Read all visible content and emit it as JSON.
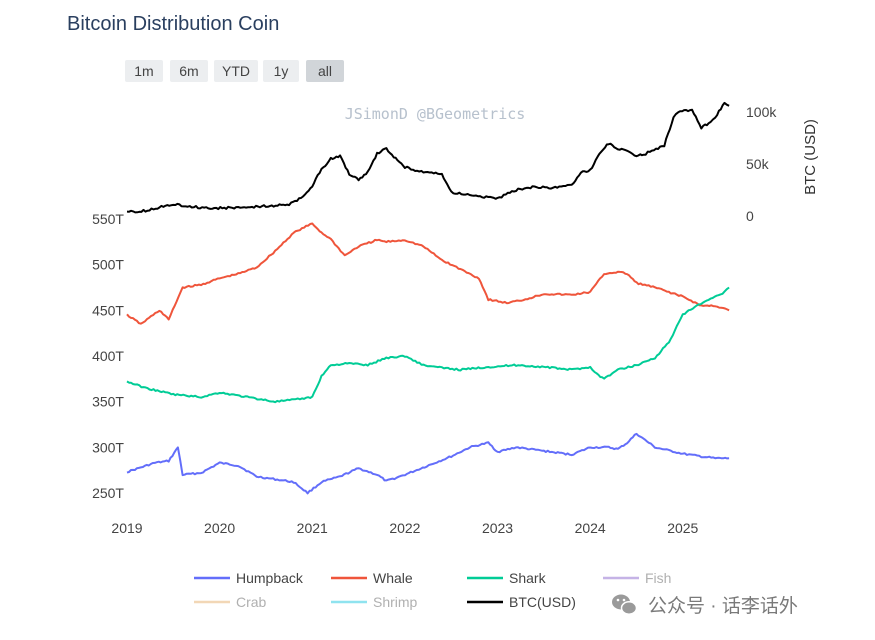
{
  "chart_data": {
    "type": "line",
    "title": "Bitcoin Distribution Coin",
    "watermark": "JSimonD @BGeometrics",
    "range_buttons": [
      {
        "label": "1m",
        "active": false
      },
      {
        "label": "6m",
        "active": false
      },
      {
        "label": "YTD",
        "active": false
      },
      {
        "label": "1y",
        "active": false
      },
      {
        "label": "all",
        "active": true
      }
    ],
    "x_range": [
      2019.0,
      2025.65
    ],
    "x_ticks": [
      2019,
      2020,
      2021,
      2022,
      2023,
      2024,
      2025
    ],
    "y_left": {
      "range": [
        250,
        550
      ],
      "ticks": [
        250,
        300,
        350,
        400,
        450,
        500,
        550
      ],
      "suffix": "T"
    },
    "y_right": {
      "title": "BTC (USD)",
      "range": [
        0,
        110000
      ],
      "ticks": [
        0,
        50000,
        100000
      ],
      "tick_labels": [
        "0",
        "50k",
        "100k"
      ]
    },
    "series": [
      {
        "name": "Humpback",
        "axis": "left",
        "color": "#636efa",
        "x": [
          2019.0,
          2019.3,
          2019.45,
          2019.55,
          2019.6,
          2019.8,
          2020.0,
          2020.2,
          2020.4,
          2020.6,
          2020.8,
          2020.95,
          2021.1,
          2021.3,
          2021.5,
          2021.7,
          2021.8,
          2022.0,
          2022.3,
          2022.5,
          2022.7,
          2022.9,
          2023.0,
          2023.2,
          2023.5,
          2023.8,
          2024.0,
          2024.2,
          2024.3,
          2024.4,
          2024.5,
          2024.7,
          2025.0,
          2025.2,
          2025.35,
          2025.5
        ],
        "y": [
          273,
          283,
          285,
          300,
          270,
          272,
          283,
          280,
          268,
          265,
          262,
          250,
          262,
          268,
          277,
          270,
          263,
          270,
          282,
          290,
          300,
          305,
          295,
          300,
          296,
          292,
          300,
          300,
          298,
          305,
          315,
          300,
          293,
          290,
          288,
          288
        ]
      },
      {
        "name": "Whale",
        "axis": "left",
        "color": "#ef553b",
        "x": [
          2019.0,
          2019.15,
          2019.35,
          2019.45,
          2019.6,
          2019.8,
          2020.0,
          2020.2,
          2020.4,
          2020.6,
          2020.8,
          2021.0,
          2021.1,
          2021.2,
          2021.35,
          2021.5,
          2021.7,
          2021.8,
          2022.0,
          2022.2,
          2022.4,
          2022.6,
          2022.8,
          2022.9,
          2023.1,
          2023.3,
          2023.5,
          2023.8,
          2024.0,
          2024.15,
          2024.3,
          2024.4,
          2024.5,
          2024.7,
          2025.0,
          2025.2,
          2025.35,
          2025.5
        ],
        "y": [
          445,
          435,
          450,
          440,
          475,
          478,
          485,
          490,
          497,
          515,
          535,
          545,
          535,
          528,
          510,
          520,
          527,
          525,
          527,
          520,
          505,
          495,
          485,
          462,
          458,
          462,
          468,
          467,
          470,
          490,
          492,
          490,
          480,
          475,
          465,
          455,
          455,
          450
        ]
      },
      {
        "name": "Shark",
        "axis": "left",
        "color": "#00cc96",
        "x": [
          2019.0,
          2019.2,
          2019.5,
          2019.8,
          2020.0,
          2020.3,
          2020.6,
          2020.8,
          2021.0,
          2021.1,
          2021.2,
          2021.4,
          2021.6,
          2021.8,
          2022.0,
          2022.2,
          2022.4,
          2022.6,
          2022.9,
          2023.2,
          2023.5,
          2023.8,
          2024.0,
          2024.05,
          2024.15,
          2024.3,
          2024.5,
          2024.7,
          2024.85,
          2025.0,
          2025.15,
          2025.3,
          2025.45,
          2025.5
        ],
        "y": [
          372,
          365,
          358,
          355,
          360,
          355,
          350,
          352,
          355,
          378,
          390,
          392,
          390,
          398,
          400,
          390,
          387,
          385,
          388,
          390,
          388,
          385,
          388,
          382,
          375,
          385,
          390,
          398,
          415,
          445,
          455,
          462,
          470,
          475
        ]
      },
      {
        "name": "Fish",
        "axis": "left",
        "color": "#c5b3e6",
        "legend_only": true,
        "x": [],
        "y": []
      },
      {
        "name": "Crab",
        "axis": "left",
        "color": "#f2d7b6",
        "legend_only": true,
        "x": [],
        "y": []
      },
      {
        "name": "Shrimp",
        "axis": "left",
        "color": "#8fe3ef",
        "legend_only": true,
        "x": [],
        "y": []
      },
      {
        "name": "BTC(USD)",
        "axis": "right",
        "color": "#000000",
        "x": [
          2019.0,
          2019.2,
          2019.5,
          2019.7,
          2019.9,
          2020.2,
          2020.5,
          2020.75,
          2020.9,
          2021.0,
          2021.1,
          2021.2,
          2021.3,
          2021.4,
          2021.5,
          2021.6,
          2021.7,
          2021.8,
          2021.9,
          2022.0,
          2022.2,
          2022.4,
          2022.5,
          2022.7,
          2022.9,
          2023.0,
          2023.2,
          2023.4,
          2023.6,
          2023.8,
          2023.9,
          2024.0,
          2024.1,
          2024.2,
          2024.3,
          2024.4,
          2024.5,
          2024.6,
          2024.8,
          2024.9,
          2024.95,
          2025.1,
          2025.2,
          2025.3,
          2025.35,
          2025.45,
          2025.5
        ],
        "y": [
          3800,
          5000,
          11500,
          9000,
          7500,
          8000,
          9500,
          11000,
          18000,
          29000,
          45000,
          55000,
          58000,
          40000,
          35000,
          42000,
          60000,
          65000,
          55000,
          47000,
          42000,
          40000,
          23000,
          20000,
          18000,
          16500,
          25000,
          28000,
          27000,
          30000,
          42000,
          44000,
          60000,
          70000,
          65000,
          62000,
          58000,
          60000,
          68000,
          95000,
          100000,
          102000,
          85000,
          90000,
          95000,
          108000,
          106000
        ]
      }
    ],
    "legend": {
      "placement": "bottom"
    },
    "grid": false
  },
  "footer": {
    "text": "公众号 · 话李话外",
    "icon": "wechat-icon"
  }
}
